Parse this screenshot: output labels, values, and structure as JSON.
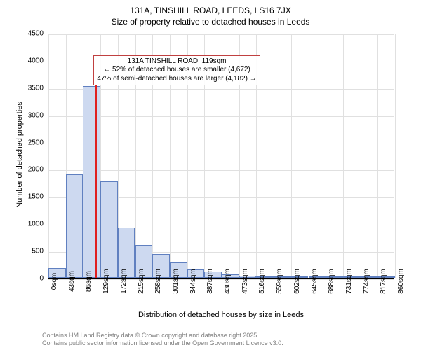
{
  "title": "131A, TINSHILL ROAD, LEEDS, LS16 7JX",
  "subtitle": "Size of property relative to detached houses in Leeds",
  "chart": {
    "type": "histogram",
    "ylabel": "Number of detached properties",
    "xlabel": "Distribution of detached houses by size in Leeds",
    "ylim": [
      0,
      4500
    ],
    "ytick_step": 500,
    "yticks": [
      0,
      500,
      1000,
      1500,
      2000,
      2500,
      3000,
      3500,
      4000,
      4500
    ],
    "xlim": [
      0,
      860
    ],
    "xtick_step": 43,
    "xticks": [
      0,
      43,
      86,
      129,
      172,
      215,
      258,
      301,
      344,
      387,
      430,
      473,
      516,
      559,
      602,
      645,
      688,
      731,
      774,
      817,
      860
    ],
    "xtick_suffix": "sqm",
    "bin_width": 43,
    "values": [
      180,
      1900,
      3520,
      1780,
      920,
      610,
      440,
      280,
      150,
      110,
      70,
      45,
      30,
      20,
      15,
      10,
      8,
      6,
      4,
      3
    ],
    "bar_color": "#cdd9f0",
    "bar_border": "#6080c0",
    "grid_color": "#e0e0e0",
    "background_color": "#ffffff",
    "axis_color": "#000000",
    "marker": {
      "x": 119,
      "color": "#e02020",
      "height_value": 3550
    },
    "annotation": {
      "line1": "131A TINSHILL ROAD: 119sqm",
      "line2": "← 52% of detached houses are smaller (4,672)",
      "line3": "47% of semi-detached houses are larger (4,182) →",
      "border_color": "#c04040",
      "fontsize": 10
    },
    "label_fontsize": 11,
    "tick_fontsize": 10,
    "title_fontsize": 12
  },
  "footer": {
    "line1": "Contains HM Land Registry data © Crown copyright and database right 2025.",
    "line2": "Contains public sector information licensed under the Open Government Licence v3.0.",
    "color": "#808080"
  }
}
